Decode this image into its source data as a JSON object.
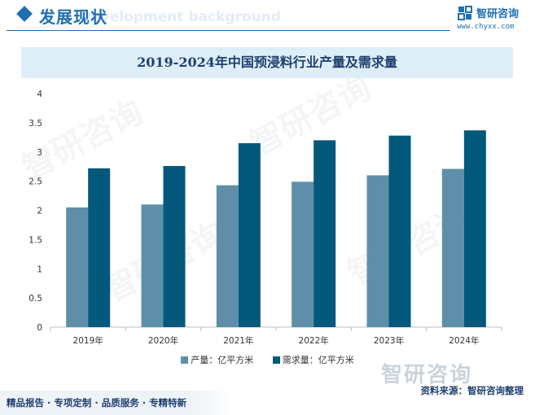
{
  "header": {
    "title": "发展现状",
    "ghost_text": "Development background"
  },
  "brand": {
    "name": "智研咨询",
    "url": "www.chyxx.com"
  },
  "watermark": {
    "text": "智研咨询"
  },
  "chart_data": {
    "type": "bar",
    "title": "2019-2024年中国预浸料行业产量及需求量",
    "categories": [
      "2019年",
      "2020年",
      "2021年",
      "2022年",
      "2023年",
      "2024年"
    ],
    "series": [
      {
        "name": "产量：亿平方米",
        "color": "#5f8fa8",
        "values": [
          2.05,
          2.1,
          2.43,
          2.49,
          2.6,
          2.71
        ]
      },
      {
        "name": "需求量：亿平方米",
        "color": "#02597c",
        "values": [
          2.72,
          2.76,
          3.15,
          3.2,
          3.28,
          3.37
        ]
      }
    ],
    "yticks": [
      "0",
      "0.5",
      "1",
      "1.5",
      "2",
      "2.5",
      "3",
      "3.5",
      "4"
    ],
    "ylim": [
      0,
      4
    ],
    "xlabel": "",
    "ylabel": "",
    "grid": false,
    "legend": "bottom"
  },
  "source": "资料来源：智研咨询整理",
  "footer": "精品报告 · 专项定制 · 品质服务 · 专精特新"
}
